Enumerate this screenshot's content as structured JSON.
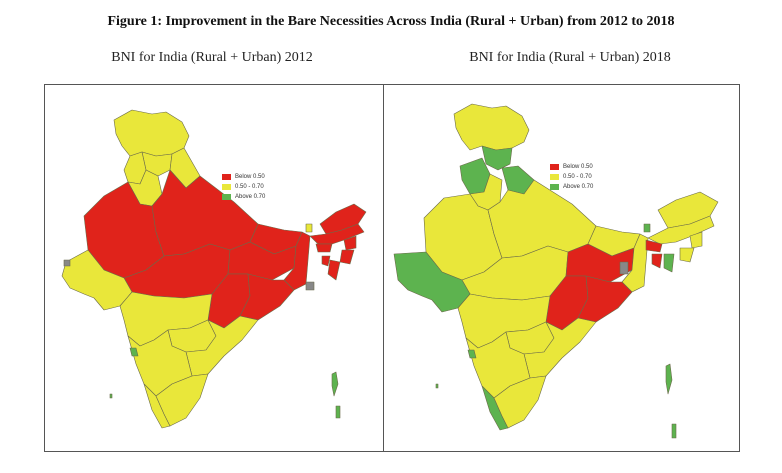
{
  "figure": {
    "title": "Figure 1: Improvement in the Bare Necessities Across India (Rural + Urban) from 2012 to 2018"
  },
  "colors": {
    "below": "#e0231b",
    "mid": "#e9e73a",
    "above": "#5db34f",
    "border": "#6b6b4a"
  },
  "maps": [
    {
      "subtitle": "BNI for India (Rural + Urban) 2012",
      "legend": [
        {
          "label": "Below 0.50",
          "color_key": "below"
        },
        {
          "label": "0.50 - 0.70",
          "color_key": "mid"
        },
        {
          "label": "Above 0.70",
          "color_key": "above"
        }
      ]
    },
    {
      "subtitle": "BNI for India (Rural + Urban) 2018",
      "legend": [
        {
          "label": "Below 0.50",
          "color_key": "below"
        },
        {
          "label": "0.50 - 0.70",
          "color_key": "mid"
        },
        {
          "label": "Above 0.70",
          "color_key": "above"
        }
      ]
    }
  ]
}
